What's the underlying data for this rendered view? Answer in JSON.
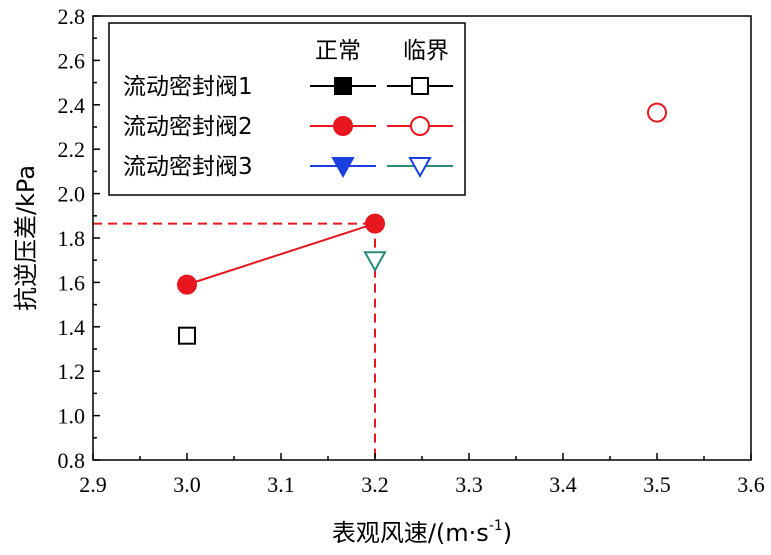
{
  "chart_data": {
    "type": "scatter",
    "xlabel": "表观风速/(m·s",
    "xlabel_sup": "-1",
    "xlabel_tail": ")",
    "ylabel": "抗逆压差/kPa",
    "xlim": [
      2.9,
      3.6
    ],
    "ylim": [
      0.8,
      2.8
    ],
    "x_ticks": [
      "2.9",
      "3.0",
      "3.1",
      "3.2",
      "3.3",
      "3.4",
      "3.5",
      "3.6"
    ],
    "y_ticks": [
      "0.8",
      "1.0",
      "1.2",
      "1.4",
      "1.6",
      "1.8",
      "2.0",
      "2.2",
      "2.4",
      "2.6",
      "2.8"
    ],
    "grid": false,
    "legend_position": "top-left",
    "legend_headers": [
      "正常",
      "临界"
    ],
    "series": [
      {
        "name": "流动密封阀1",
        "normal_color": "#000000",
        "critical_color": "#000000",
        "marker": "square",
        "normal": [],
        "critical": [
          {
            "x": 3.0,
            "y": 1.36
          }
        ]
      },
      {
        "name": "流动密封阀2",
        "normal_color": "#e8171f",
        "critical_color": "#e8171f",
        "marker": "circle",
        "normal": [
          {
            "x": 3.0,
            "y": 1.59
          },
          {
            "x": 3.2,
            "y": 1.865
          }
        ],
        "critical": [
          {
            "x": 3.5,
            "y": 2.365
          }
        ]
      },
      {
        "name": "流动密封阀3",
        "normal_color": "#1c3fe0",
        "critical_color": "#2a8a7a",
        "marker": "triangle-down",
        "normal": [],
        "critical": [
          {
            "x": 3.2,
            "y": 1.7
          }
        ]
      }
    ],
    "reference_lines": {
      "color": "#e8171f",
      "point": {
        "x": 3.2,
        "y": 1.865
      }
    }
  }
}
